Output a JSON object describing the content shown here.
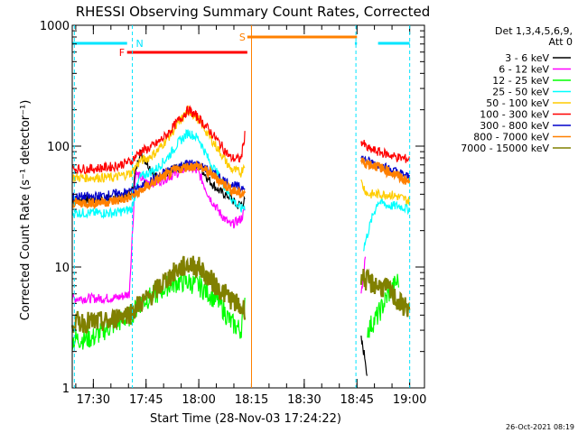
{
  "chart_data": {
    "type": "line",
    "title": "RHESSI Observing Summary Count Rates, Corrected",
    "xlabel": "Start Time (28-Nov-03 17:24:22)",
    "ylabel": "Corrected Count Rate (s⁻¹ detector⁻¹)",
    "ylog": true,
    "ylim": [
      1,
      1000
    ],
    "xlim": [
      17.4,
      19.07
    ],
    "x_ticks": [
      {
        "x": 17.5,
        "label": "17:30"
      },
      {
        "x": 17.75,
        "label": "17:45"
      },
      {
        "x": 18.0,
        "label": "18:00"
      },
      {
        "x": 18.25,
        "label": "18:15"
      },
      {
        "x": 18.5,
        "label": "18:30"
      },
      {
        "x": 18.75,
        "label": "18:45"
      },
      {
        "x": 19.0,
        "label": "19:00"
      }
    ],
    "y_ticks": [
      {
        "y": 1,
        "label": "1"
      },
      {
        "y": 10,
        "label": "10"
      },
      {
        "y": 100,
        "label": "100"
      },
      {
        "y": 1000,
        "label": "1000"
      }
    ],
    "legend_header": [
      "Det 1,3,4,5,6,9,",
      "Att 0"
    ],
    "legend_placement": "right",
    "series": [
      {
        "name": "3 - 6 keV",
        "color": "#000000",
        "points": [
          [
            17.4,
            36
          ],
          [
            17.5,
            36
          ],
          [
            17.6,
            37
          ],
          [
            17.68,
            40
          ],
          [
            17.72,
            90
          ],
          [
            17.76,
            70
          ],
          [
            17.8,
            55
          ],
          [
            17.85,
            60
          ],
          [
            17.9,
            65
          ],
          [
            17.95,
            68
          ],
          [
            18.0,
            70
          ],
          [
            18.05,
            52
          ],
          [
            18.1,
            42
          ],
          [
            18.15,
            38
          ],
          [
            18.18,
            32
          ],
          [
            18.22,
            35
          ]
        ],
        "segment2": [
          [
            18.77,
            2.5
          ],
          [
            18.79,
            1.7
          ],
          [
            18.8,
            1.2
          ]
        ]
      },
      {
        "name": "6 - 12 keV",
        "color": "#ff00ff",
        "points": [
          [
            17.4,
            5.5
          ],
          [
            17.55,
            5.5
          ],
          [
            17.62,
            5.6
          ],
          [
            17.67,
            6
          ],
          [
            17.7,
            60
          ],
          [
            17.75,
            50
          ],
          [
            17.8,
            50
          ],
          [
            17.85,
            55
          ],
          [
            17.9,
            60
          ],
          [
            17.95,
            68
          ],
          [
            18.0,
            60
          ],
          [
            18.05,
            38
          ],
          [
            18.1,
            28
          ],
          [
            18.15,
            22
          ],
          [
            18.2,
            25
          ],
          [
            18.22,
            30
          ]
        ],
        "segment2": [
          [
            18.77,
            6
          ],
          [
            18.79,
            12
          ]
        ]
      },
      {
        "name": "12 - 25 keV",
        "color": "#00ff00",
        "points": [
          [
            17.4,
            2.5
          ],
          [
            17.5,
            2.6
          ],
          [
            17.55,
            3
          ],
          [
            17.62,
            3.5
          ],
          [
            17.68,
            4
          ],
          [
            17.72,
            5
          ],
          [
            17.76,
            5.5
          ],
          [
            17.8,
            6
          ],
          [
            17.85,
            7
          ],
          [
            17.9,
            7.5
          ],
          [
            17.95,
            7.5
          ],
          [
            18.0,
            7
          ],
          [
            18.05,
            6
          ],
          [
            18.1,
            5
          ],
          [
            18.15,
            3.5
          ],
          [
            18.2,
            3
          ],
          [
            18.22,
            6
          ]
        ],
        "segment2": [
          [
            18.8,
            3
          ],
          [
            18.85,
            4
          ],
          [
            18.9,
            6
          ],
          [
            18.95,
            8
          ]
        ]
      },
      {
        "name": "25 - 50 keV",
        "color": "#00ffff",
        "points": [
          [
            17.4,
            28
          ],
          [
            17.5,
            28
          ],
          [
            17.6,
            28
          ],
          [
            17.68,
            30
          ],
          [
            17.72,
            55
          ],
          [
            17.76,
            60
          ],
          [
            17.8,
            65
          ],
          [
            17.85,
            80
          ],
          [
            17.9,
            105
          ],
          [
            17.95,
            130
          ],
          [
            18.0,
            115
          ],
          [
            18.05,
            75
          ],
          [
            18.1,
            55
          ],
          [
            18.15,
            38
          ],
          [
            18.2,
            30
          ],
          [
            18.22,
            32
          ]
        ],
        "segment2": [
          [
            18.78,
            14
          ],
          [
            18.82,
            25
          ],
          [
            18.85,
            35
          ],
          [
            18.9,
            32
          ],
          [
            18.95,
            32
          ],
          [
            19.0,
            30
          ]
        ]
      },
      {
        "name": "50 - 100 keV",
        "color": "#ffcc00",
        "points": [
          [
            17.4,
            55
          ],
          [
            17.5,
            55
          ],
          [
            17.6,
            55
          ],
          [
            17.68,
            60
          ],
          [
            17.72,
            75
          ],
          [
            17.76,
            80
          ],
          [
            17.8,
            90
          ],
          [
            17.85,
            115
          ],
          [
            17.9,
            150
          ],
          [
            17.95,
            200
          ],
          [
            18.0,
            165
          ],
          [
            18.05,
            120
          ],
          [
            18.1,
            90
          ],
          [
            18.15,
            65
          ],
          [
            18.2,
            60
          ],
          [
            18.22,
            75
          ]
        ],
        "segment2": [
          [
            18.77,
            50
          ],
          [
            18.8,
            40
          ],
          [
            18.85,
            40
          ],
          [
            18.9,
            40
          ],
          [
            18.95,
            38
          ],
          [
            19.0,
            35
          ]
        ]
      },
      {
        "name": "100 - 300 keV",
        "color": "#ff0000",
        "points": [
          [
            17.4,
            65
          ],
          [
            17.5,
            65
          ],
          [
            17.6,
            68
          ],
          [
            17.68,
            75
          ],
          [
            17.72,
            90
          ],
          [
            17.76,
            95
          ],
          [
            17.8,
            105
          ],
          [
            17.85,
            125
          ],
          [
            17.9,
            160
          ],
          [
            17.95,
            200
          ],
          [
            18.0,
            170
          ],
          [
            18.05,
            135
          ],
          [
            18.1,
            105
          ],
          [
            18.15,
            80
          ],
          [
            18.2,
            78
          ],
          [
            18.22,
            130
          ]
        ],
        "segment2": [
          [
            18.77,
            110
          ],
          [
            18.8,
            95
          ],
          [
            18.85,
            90
          ],
          [
            18.9,
            85
          ],
          [
            18.95,
            80
          ],
          [
            19.0,
            78
          ]
        ]
      },
      {
        "name": "300 - 800 keV",
        "color": "#0000cc",
        "points": [
          [
            17.4,
            38
          ],
          [
            17.5,
            38
          ],
          [
            17.6,
            40
          ],
          [
            17.68,
            42
          ],
          [
            17.72,
            45
          ],
          [
            17.76,
            50
          ],
          [
            17.8,
            55
          ],
          [
            17.85,
            62
          ],
          [
            17.9,
            68
          ],
          [
            17.95,
            72
          ],
          [
            18.0,
            70
          ],
          [
            18.05,
            62
          ],
          [
            18.1,
            55
          ],
          [
            18.15,
            48
          ],
          [
            18.2,
            45
          ],
          [
            18.22,
            48
          ]
        ],
        "segment2": [
          [
            18.77,
            80
          ],
          [
            18.8,
            75
          ],
          [
            18.85,
            70
          ],
          [
            18.9,
            65
          ],
          [
            18.95,
            60
          ],
          [
            19.0,
            55
          ]
        ]
      },
      {
        "name": "800 - 7000 keV",
        "color": "#ff8000",
        "points": [
          [
            17.4,
            34
          ],
          [
            17.5,
            34
          ],
          [
            17.6,
            35
          ],
          [
            17.68,
            38
          ],
          [
            17.72,
            42
          ],
          [
            17.76,
            47
          ],
          [
            17.8,
            52
          ],
          [
            17.85,
            58
          ],
          [
            17.9,
            64
          ],
          [
            17.95,
            68
          ],
          [
            18.0,
            68
          ],
          [
            18.05,
            60
          ],
          [
            18.1,
            52
          ],
          [
            18.15,
            44
          ],
          [
            18.2,
            40
          ],
          [
            18.22,
            42
          ]
        ],
        "segment2": [
          [
            18.77,
            75
          ],
          [
            18.8,
            72
          ],
          [
            18.85,
            68
          ],
          [
            18.9,
            62
          ],
          [
            18.95,
            56
          ],
          [
            19.0,
            50
          ]
        ]
      },
      {
        "name": "7000 - 15000 keV",
        "color": "#808000",
        "points": [
          [
            17.4,
            3.5
          ],
          [
            17.5,
            3.5
          ],
          [
            17.58,
            3.5
          ],
          [
            17.62,
            4
          ],
          [
            17.68,
            4.2
          ],
          [
            17.72,
            5
          ],
          [
            17.76,
            5.5
          ],
          [
            17.8,
            6.5
          ],
          [
            17.85,
            8
          ],
          [
            17.9,
            9.5
          ],
          [
            17.95,
            10.5
          ],
          [
            18.0,
            10
          ],
          [
            18.05,
            8
          ],
          [
            18.1,
            6.5
          ],
          [
            18.15,
            5.5
          ],
          [
            18.2,
            4.5
          ],
          [
            18.22,
            4.5
          ]
        ],
        "segment2": [
          [
            18.77,
            8.5
          ],
          [
            18.8,
            7.5
          ],
          [
            18.85,
            7
          ],
          [
            18.9,
            6.5
          ],
          [
            18.95,
            5
          ],
          [
            19.0,
            4.5
          ]
        ]
      }
    ],
    "flags": [
      {
        "label": "N",
        "color": "#00e5ff",
        "segments": [
          [
            17.4,
            17.66
          ],
          [
            18.74,
            18.75
          ],
          [
            18.85,
            19.0
          ]
        ]
      },
      {
        "label": "F",
        "color": "#ff0000",
        "segments": [
          [
            17.66,
            18.23
          ]
        ]
      },
      {
        "label": "S",
        "color": "#ff8000",
        "segments": [
          [
            18.23,
            18.75
          ]
        ]
      }
    ],
    "vlines": [
      {
        "x": 17.41,
        "color": "#00e5ff"
      },
      {
        "x": 17.685,
        "color": "#00e5ff"
      },
      {
        "x": 18.25,
        "color": "#ff8000"
      },
      {
        "x": 18.745,
        "color": "#00e5ff"
      },
      {
        "x": 19.0,
        "color": "#00e5ff"
      }
    ],
    "footer_timestamp": "26-Oct-2021 08:19"
  }
}
